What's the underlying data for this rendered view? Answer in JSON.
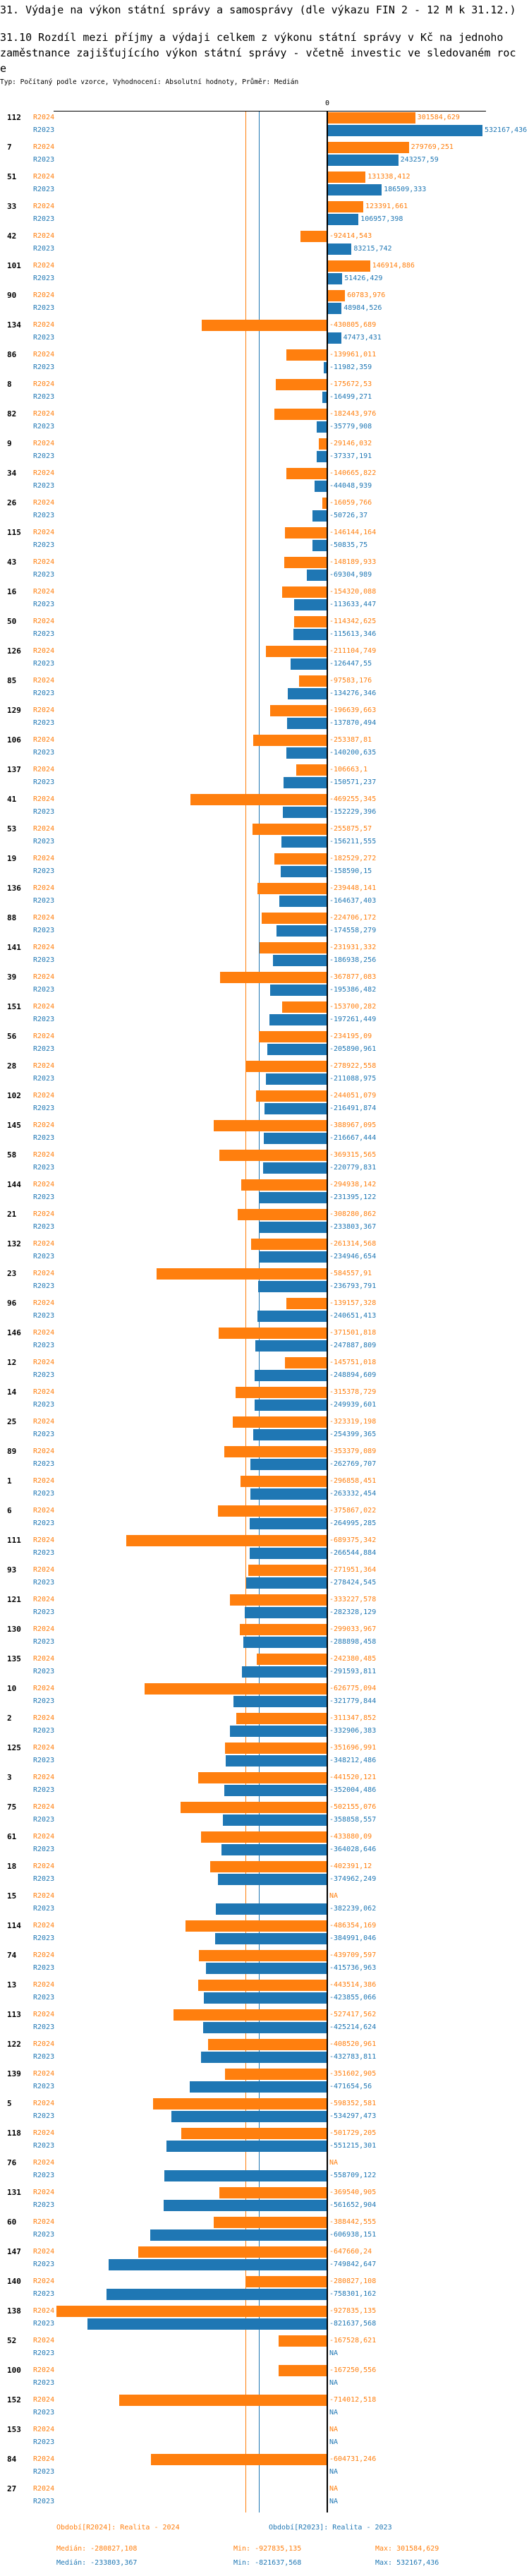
{
  "header": {
    "title": "31. Výdaje na výkon státní správy a samosprávy (dle výkazu FIN 2 - 12 M k 31.12.)",
    "subtitle_line1": "31.10 Rozdíl mezi  příjmy a výdaji celkem z výkonu státní správy v Kč na jednoho",
    "subtitle_line2": "zaměstnance zajišťujícího výkon státní správy - včetně investic ve sledovaném roc",
    "subtitle_line3": "e",
    "type_line": "Typ: Počítaný podle vzorce, Vyhodnocení: Absolutní hodnoty, Průměr: Medián"
  },
  "colors": {
    "r2024": "#ff7f0e",
    "r2023": "#1f77b4",
    "axis": "#000000"
  },
  "chart_data": {
    "type": "bar",
    "orientation": "horizontal",
    "zero_label": "0",
    "na_label": "NA",
    "xlim": [
      -927835.135,
      532167.436
    ],
    "series": [
      {
        "name": "R2024",
        "legend": "Období[R2024]: Realita - 2024",
        "median": -280827.108,
        "min": -927835.135,
        "max": 301584.629,
        "color": "#ff7f0e"
      },
      {
        "name": "R2023",
        "legend": "Období[R2023]: Realita - 2023",
        "median": -233803.367,
        "min": -821637.568,
        "max": 532167.436,
        "color": "#1f77b4"
      }
    ],
    "categories": [
      {
        "label": "112",
        "r2024": 301584.629,
        "r2023": 532167.436
      },
      {
        "label": "7",
        "r2024": 279769.251,
        "r2023": 243257.59
      },
      {
        "label": "51",
        "r2024": 131338.412,
        "r2023": 186509.333
      },
      {
        "label": "33",
        "r2024": 123391.661,
        "r2023": 106957.398
      },
      {
        "label": "42",
        "r2024": -92414.543,
        "r2023": 83215.742
      },
      {
        "label": "101",
        "r2024": 146914.886,
        "r2023": 51426.429
      },
      {
        "label": "90",
        "r2024": 60783.976,
        "r2023": 48984.526
      },
      {
        "label": "134",
        "r2024": -430805.689,
        "r2023": 47473.431
      },
      {
        "label": "86",
        "r2024": -139961.011,
        "r2023": -11982.359
      },
      {
        "label": "8",
        "r2024": -175672.53,
        "r2023": -16499.271
      },
      {
        "label": "82",
        "r2024": -182443.976,
        "r2023": -35779.908
      },
      {
        "label": "9",
        "r2024": -29146.032,
        "r2023": -37337.191
      },
      {
        "label": "34",
        "r2024": -140665.822,
        "r2023": -44048.939
      },
      {
        "label": "26",
        "r2024": -16059.766,
        "r2023": -50726.37
      },
      {
        "label": "115",
        "r2024": -146144.164,
        "r2023": -50835.75
      },
      {
        "label": "43",
        "r2024": -148189.933,
        "r2023": -69304.989
      },
      {
        "label": "16",
        "r2024": -154320.088,
        "r2023": -113633.447
      },
      {
        "label": "50",
        "r2024": -114342.625,
        "r2023": -115613.346
      },
      {
        "label": "126",
        "r2024": -211104.749,
        "r2023": -126447.55
      },
      {
        "label": "85",
        "r2024": -97583.176,
        "r2023": -134276.346
      },
      {
        "label": "129",
        "r2024": -196639.663,
        "r2023": -137870.494
      },
      {
        "label": "106",
        "r2024": -253387.81,
        "r2023": -140200.635
      },
      {
        "label": "137",
        "r2024": -106663.1,
        "r2023": -150571.237
      },
      {
        "label": "41",
        "r2024": -469255.345,
        "r2023": -152229.396
      },
      {
        "label": "53",
        "r2024": -255875.57,
        "r2023": -156211.555
      },
      {
        "label": "19",
        "r2024": -182529.272,
        "r2023": -158590.15
      },
      {
        "label": "136",
        "r2024": -239448.141,
        "r2023": -164637.403
      },
      {
        "label": "88",
        "r2024": -224706.172,
        "r2023": -174558.279
      },
      {
        "label": "141",
        "r2024": -231931.332,
        "r2023": -186938.256
      },
      {
        "label": "39",
        "r2024": -367877.083,
        "r2023": -195386.482
      },
      {
        "label": "151",
        "r2024": -153700.282,
        "r2023": -197261.449
      },
      {
        "label": "56",
        "r2024": -234195.09,
        "r2023": -205890.961
      },
      {
        "label": "28",
        "r2024": -278922.558,
        "r2023": -211088.975
      },
      {
        "label": "102",
        "r2024": -244051.079,
        "r2023": -216491.874
      },
      {
        "label": "145",
        "r2024": -388967.095,
        "r2023": -216667.444
      },
      {
        "label": "58",
        "r2024": -369315.565,
        "r2023": -220779.831
      },
      {
        "label": "144",
        "r2024": -294938.142,
        "r2023": -231395.122
      },
      {
        "label": "21",
        "r2024": -308280.862,
        "r2023": -233803.367
      },
      {
        "label": "132",
        "r2024": -261314.568,
        "r2023": -234946.654
      },
      {
        "label": "23",
        "r2024": -584557.91,
        "r2023": -236793.791
      },
      {
        "label": "96",
        "r2024": -139157.328,
        "r2023": -240651.413
      },
      {
        "label": "146",
        "r2024": -371501.818,
        "r2023": -247887.809
      },
      {
        "label": "12",
        "r2024": -145751.018,
        "r2023": -248894.609
      },
      {
        "label": "14",
        "r2024": -315378.729,
        "r2023": -249939.601
      },
      {
        "label": "25",
        "r2024": -323319.198,
        "r2023": -254399.365
      },
      {
        "label": "89",
        "r2024": -353379.089,
        "r2023": -262769.707
      },
      {
        "label": "1",
        "r2024": -296858.451,
        "r2023": -263332.454
      },
      {
        "label": "6",
        "r2024": -375867.022,
        "r2023": -264995.285
      },
      {
        "label": "111",
        "r2024": -689375.342,
        "r2023": -266544.884
      },
      {
        "label": "93",
        "r2024": -271951.364,
        "r2023": -278424.545
      },
      {
        "label": "121",
        "r2024": -333227.578,
        "r2023": -282328.129
      },
      {
        "label": "130",
        "r2024": -299033.967,
        "r2023": -288898.458
      },
      {
        "label": "135",
        "r2024": -242380.485,
        "r2023": -291593.811
      },
      {
        "label": "10",
        "r2024": -626775.094,
        "r2023": -321779.844
      },
      {
        "label": "2",
        "r2024": -311347.852,
        "r2023": -332906.383
      },
      {
        "label": "125",
        "r2024": -351696.991,
        "r2023": -348212.486
      },
      {
        "label": "3",
        "r2024": -441520.121,
        "r2023": -352004.486
      },
      {
        "label": "75",
        "r2024": -502155.076,
        "r2023": -358858.557
      },
      {
        "label": "61",
        "r2024": -433880.09,
        "r2023": -364028.646
      },
      {
        "label": "18",
        "r2024": -402391.12,
        "r2023": -374962.249
      },
      {
        "label": "15",
        "r2024": null,
        "r2023": -382239.062
      },
      {
        "label": "114",
        "r2024": -486354.169,
        "r2023": -384991.046
      },
      {
        "label": "74",
        "r2024": -439709.597,
        "r2023": -415736.963
      },
      {
        "label": "13",
        "r2024": -443514.386,
        "r2023": -423855.066
      },
      {
        "label": "113",
        "r2024": -527417.562,
        "r2023": -425214.624
      },
      {
        "label": "122",
        "r2024": -408520.961,
        "r2023": -432783.811
      },
      {
        "label": "139",
        "r2024": -351602.905,
        "r2023": -471654.56
      },
      {
        "label": "5",
        "r2024": -598352.581,
        "r2023": -534297.473
      },
      {
        "label": "118",
        "r2024": -501729.205,
        "r2023": -551215.301
      },
      {
        "label": "76",
        "r2024": null,
        "r2023": -558709.122
      },
      {
        "label": "131",
        "r2024": -369540.905,
        "r2023": -561652.904
      },
      {
        "label": "60",
        "r2024": -388442.555,
        "r2023": -606938.151
      },
      {
        "label": "147",
        "r2024": -647660.24,
        "r2023": -749842.647
      },
      {
        "label": "140",
        "r2024": -280827.108,
        "r2023": -758301.162
      },
      {
        "label": "138",
        "r2024": -927835.135,
        "r2023": -821637.568
      },
      {
        "label": "52",
        "r2024": -167528.621,
        "r2023": null
      },
      {
        "label": "100",
        "r2024": -167250.556,
        "r2023": null
      },
      {
        "label": "152",
        "r2024": -714012.518,
        "r2023": null
      },
      {
        "label": "153",
        "r2024": null,
        "r2023": null
      },
      {
        "label": "84",
        "r2024": -604731.246,
        "r2023": null
      },
      {
        "label": "27",
        "r2024": null,
        "r2023": null
      }
    ]
  },
  "footer": {
    "legend_r2024": "Období[R2024]: Realita - 2024",
    "legend_r2023": "Období[R2023]: Realita - 2023",
    "median_r2024": "Medián: -280827,108",
    "min_r2024": "Min: -927835,135",
    "max_r2024": "Max: 301584,629",
    "median_r2023": "Medián: -233803,367",
    "min_r2023": "Min: -821637,568",
    "max_r2023": "Max: 532167,436"
  }
}
